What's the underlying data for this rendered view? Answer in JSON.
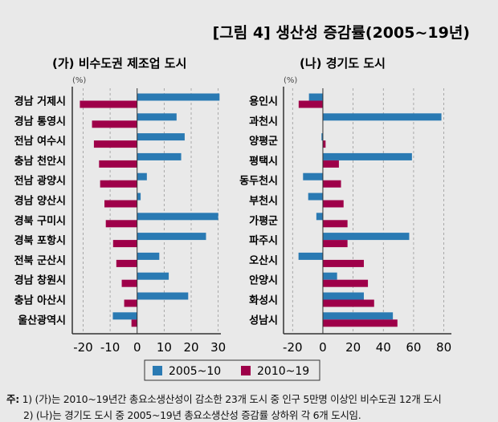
{
  "title": "[그림 4] 생산성 증감률(2005~19년)",
  "colors": {
    "series_2005_10": "#2a7ab3",
    "series_2010_19": "#9e0049"
  },
  "chart_data": [
    {
      "type": "bar",
      "orientation": "horizontal",
      "title": "(가) 비수도권 제조업 도시",
      "unit_label": "(%)",
      "categories": [
        "경남 거제시",
        "경남 통영시",
        "전남 여수시",
        "충남 천안시",
        "전남 광양시",
        "경남 양산시",
        "경북 구미시",
        "경북 포항시",
        "전북 군산시",
        "경남 창원시",
        "충남 아산시",
        "울산광역시"
      ],
      "series": [
        {
          "name": "2005~10",
          "values": [
            30.5,
            14.6,
            17.6,
            16.3,
            3.6,
            1.3,
            30.0,
            25.5,
            8.2,
            11.7,
            18.9,
            -9.0
          ]
        },
        {
          "name": "2010~19",
          "values": [
            -21.2,
            -16.7,
            -16.0,
            -14.1,
            -13.7,
            -12.1,
            -11.6,
            -8.9,
            -7.7,
            -5.7,
            -4.8,
            -2.1
          ]
        }
      ],
      "xlim": [
        -24,
        31
      ],
      "xticks": [
        -20,
        -10,
        0,
        10,
        20,
        30
      ],
      "grid": "vertical dashed"
    },
    {
      "type": "bar",
      "orientation": "horizontal",
      "title": "(나) 경기도 도시",
      "unit_label": "(%)",
      "categories": [
        "용인시",
        "과천시",
        "양평군",
        "평택시",
        "동두천시",
        "부천시",
        "가평군",
        "파주시",
        "오산시",
        "안양시",
        "화성시",
        "성남시"
      ],
      "series": [
        {
          "name": "2005~10",
          "values": [
            -9.2,
            78.4,
            -0.9,
            58.9,
            -13.1,
            -9.7,
            -4.3,
            57.1,
            -16.1,
            9.4,
            27.1,
            46.3
          ]
        },
        {
          "name": "2010~19",
          "values": [
            -16.0,
            null,
            1.8,
            10.6,
            12.0,
            13.7,
            16.3,
            16.3,
            27.1,
            29.8,
            33.9,
            49.3
          ]
        }
      ],
      "xlim": [
        -26,
        85
      ],
      "xticks": [
        -20,
        0,
        20,
        40,
        60,
        80
      ],
      "grid": "vertical dashed"
    }
  ],
  "legend": {
    "placement": "bottom",
    "items": [
      "2005~10",
      "2010~19"
    ]
  },
  "notes": {
    "label": "주:",
    "line1": "1) (가)는 2010~19년간 총요소생산성이 감소한 23개 도시 중 인구 5만명 이상인 비수도권 12개 도시",
    "line2": "2) (나)는 경기도 도시 중 2005~19년 총요소생산성 증감률 상하위 각 6개 도시임."
  }
}
